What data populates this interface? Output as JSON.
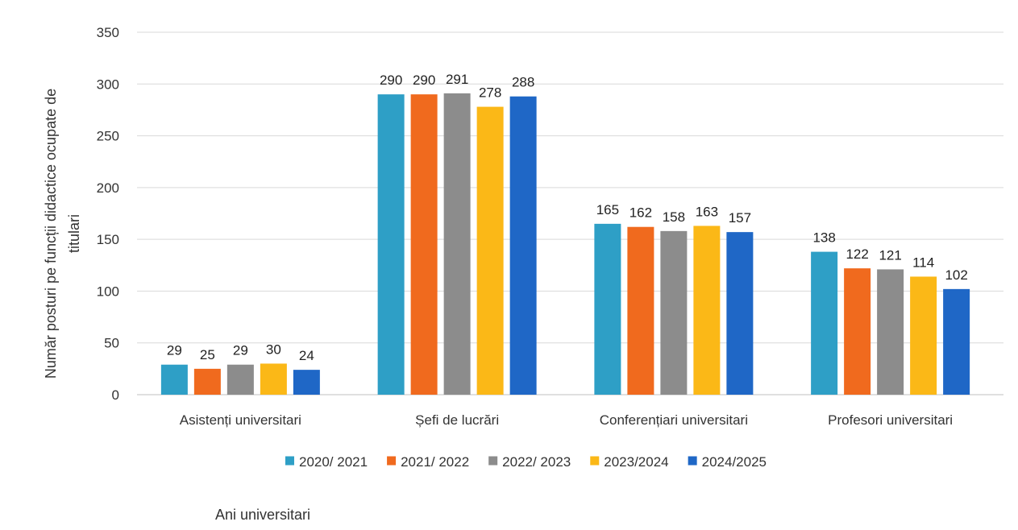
{
  "chart_data": {
    "type": "bar",
    "categories": [
      "Asistenți universitari",
      "Șefi de lucrări",
      "Conferențiari universitari",
      "Profesori universitari"
    ],
    "series": [
      {
        "name": "2020/ 2021",
        "color": "#2E9FC6",
        "values": [
          29,
          290,
          165,
          138
        ]
      },
      {
        "name": "2021/ 2022",
        "color": "#F06A1E",
        "values": [
          25,
          290,
          162,
          122
        ]
      },
      {
        "name": "2022/ 2023",
        "color": "#8C8C8C",
        "values": [
          29,
          291,
          158,
          121
        ]
      },
      {
        "name": "2023/2024",
        "color": "#FBB817",
        "values": [
          30,
          278,
          163,
          114
        ]
      },
      {
        "name": "2024/2025",
        "color": "#1F67C6",
        "values": [
          24,
          288,
          157,
          102
        ]
      }
    ],
    "ylabel": "Număr posturi pe funcții didactice ocupate de titulari",
    "ylabel_lines": [
      "Număr posturi pe funcții didactice ocupate de",
      "titulari"
    ],
    "xlabel": "Ani universitari",
    "ylim": [
      0,
      350
    ],
    "yticks": [
      "0",
      "50",
      "100",
      "150",
      "200",
      "250",
      "300",
      "350"
    ],
    "ytick_values": [
      0,
      50,
      100,
      150,
      200,
      250,
      300,
      350
    ],
    "grid": true,
    "legend_position": "bottom"
  }
}
